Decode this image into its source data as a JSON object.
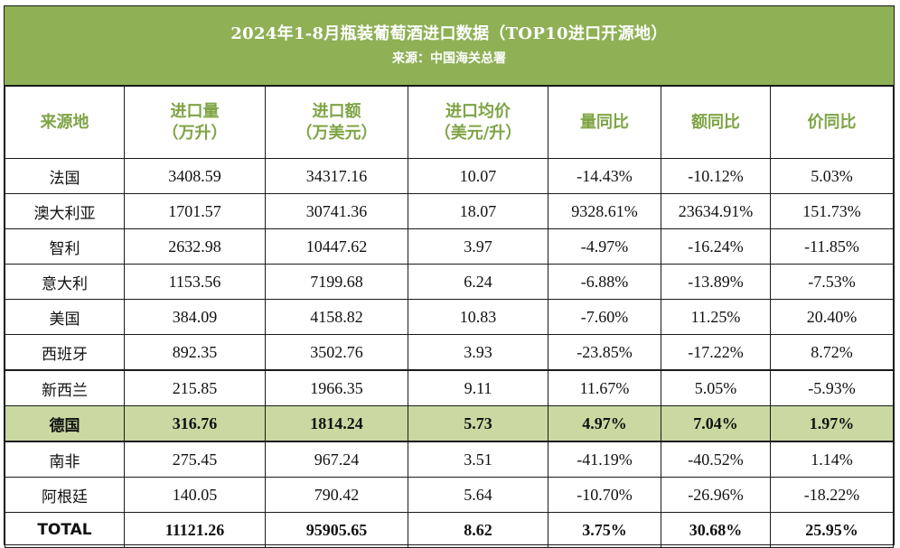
{
  "title": "2024年1-8月瓶装葡萄酒进口数据（TOP10进口开源地）",
  "source": "来源：中国海关总署",
  "colors": {
    "header_bg": "#8fb055",
    "header_text": "#7ea445",
    "highlight_bg": "#c9d9a1"
  },
  "columns": [
    {
      "line1": "来源地",
      "line2": ""
    },
    {
      "line1": "进口量",
      "line2": "（万升）"
    },
    {
      "line1": "进口额",
      "line2": "（万美元）"
    },
    {
      "line1": "进口均价",
      "line2": "（美元/升）"
    },
    {
      "line1": "量同比",
      "line2": ""
    },
    {
      "line1": "额同比",
      "line2": ""
    },
    {
      "line1": "价同比",
      "line2": ""
    }
  ],
  "rows": [
    {
      "origin": "法国",
      "volume": "3408.59",
      "value": "34317.16",
      "avg_price": "10.07",
      "vol_yoy": "-14.43%",
      "val_yoy": "-10.12%",
      "price_yoy": "5.03%"
    },
    {
      "origin": "澳大利亚",
      "volume": "1701.57",
      "value": "30741.36",
      "avg_price": "18.07",
      "vol_yoy": "9328.61%",
      "val_yoy": "23634.91%",
      "price_yoy": "151.73%"
    },
    {
      "origin": "智利",
      "volume": "2632.98",
      "value": "10447.62",
      "avg_price": "3.97",
      "vol_yoy": "-4.97%",
      "val_yoy": "-16.24%",
      "price_yoy": "-11.85%"
    },
    {
      "origin": "意大利",
      "volume": "1153.56",
      "value": "7199.68",
      "avg_price": "6.24",
      "vol_yoy": "-6.88%",
      "val_yoy": "-13.89%",
      "price_yoy": "-7.53%"
    },
    {
      "origin": "美国",
      "volume": "384.09",
      "value": "4158.82",
      "avg_price": "10.83",
      "vol_yoy": "-7.60%",
      "val_yoy": "11.25%",
      "price_yoy": "20.40%"
    },
    {
      "origin": "西班牙",
      "volume": "892.35",
      "value": "3502.76",
      "avg_price": "3.93",
      "vol_yoy": "-23.85%",
      "val_yoy": "-17.22%",
      "price_yoy": "8.72%"
    },
    {
      "origin": "新西兰",
      "volume": "215.85",
      "value": "1966.35",
      "avg_price": "9.11",
      "vol_yoy": "11.67%",
      "val_yoy": "5.05%",
      "price_yoy": "-5.93%"
    },
    {
      "origin": "德国",
      "volume": "316.76",
      "value": "1814.24",
      "avg_price": "5.73",
      "vol_yoy": "4.97%",
      "val_yoy": "7.04%",
      "price_yoy": "1.97%"
    },
    {
      "origin": "南非",
      "volume": "275.45",
      "value": "967.24",
      "avg_price": "3.51",
      "vol_yoy": "-41.19%",
      "val_yoy": "-40.52%",
      "price_yoy": "1.14%"
    },
    {
      "origin": "阿根廷",
      "volume": "140.05",
      "value": "790.42",
      "avg_price": "5.64",
      "vol_yoy": "-10.70%",
      "val_yoy": "-26.96%",
      "price_yoy": "-18.22%"
    }
  ],
  "total": {
    "origin": "TOTAL",
    "volume": "11121.26",
    "value": "95905.65",
    "avg_price": "8.62",
    "vol_yoy": "3.75%",
    "val_yoy": "30.68%",
    "price_yoy": "25.95%"
  }
}
